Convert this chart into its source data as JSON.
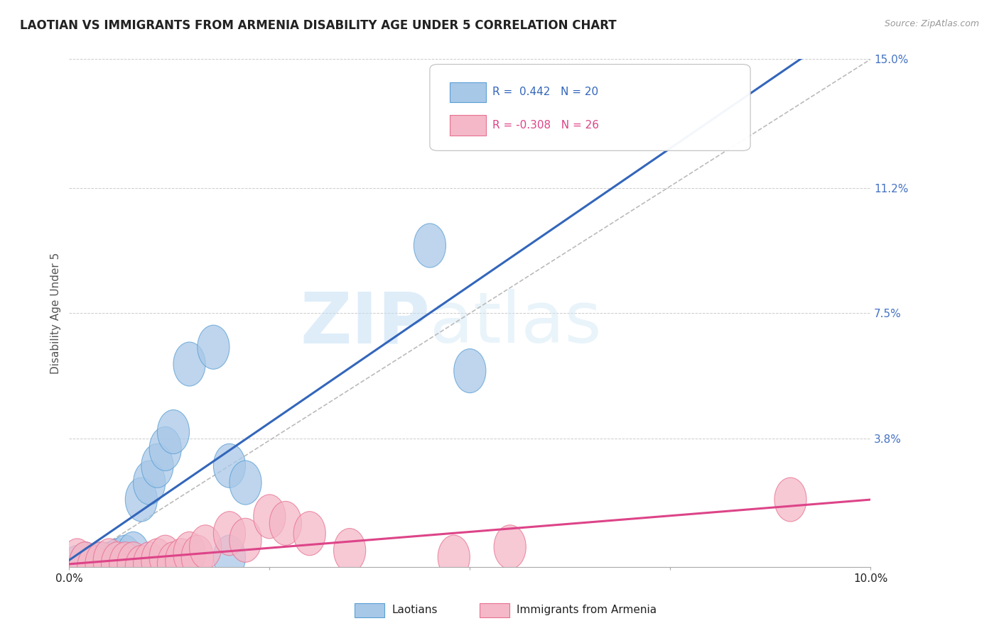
{
  "title": "LAOTIAN VS IMMIGRANTS FROM ARMENIA DISABILITY AGE UNDER 5 CORRELATION CHART",
  "source": "Source: ZipAtlas.com",
  "ylabel": "Disability Age Under 5",
  "xlim": [
    0.0,
    0.1
  ],
  "ylim": [
    0.0,
    0.15
  ],
  "yticks": [
    0.0,
    0.038,
    0.075,
    0.112,
    0.15
  ],
  "ytick_labels": [
    "",
    "3.8%",
    "7.5%",
    "11.2%",
    "15.0%"
  ],
  "legend_blue_r": "R =  0.442",
  "legend_blue_n": "N = 20",
  "legend_pink_r": "R = -0.308",
  "legend_pink_n": "N = 26",
  "blue_color": "#a8c8e8",
  "blue_edge_color": "#5a9fd4",
  "pink_color": "#f4b8c8",
  "pink_edge_color": "#e87090",
  "blue_line_color": "#3366bb",
  "pink_line_color": "#dd4488",
  "gray_dash_color": "#bbbbbb",
  "background_color": "#ffffff",
  "watermark_color": "#ddeeff",
  "laotian_x": [
    0.001,
    0.002,
    0.003,
    0.004,
    0.005,
    0.006,
    0.007,
    0.008,
    0.009,
    0.01,
    0.011,
    0.012,
    0.013,
    0.015,
    0.018,
    0.02,
    0.022,
    0.02,
    0.05,
    0.045
  ],
  "laotian_y": [
    0.0,
    0.001,
    0.0,
    0.001,
    0.001,
    0.002,
    0.003,
    0.004,
    0.02,
    0.025,
    0.03,
    0.035,
    0.04,
    0.06,
    0.065,
    0.03,
    0.025,
    0.003,
    0.058,
    0.095
  ],
  "armenia_x": [
    0.001,
    0.002,
    0.003,
    0.004,
    0.005,
    0.006,
    0.007,
    0.008,
    0.009,
    0.01,
    0.011,
    0.012,
    0.013,
    0.014,
    0.015,
    0.016,
    0.017,
    0.02,
    0.022,
    0.025,
    0.027,
    0.03,
    0.035,
    0.048,
    0.055,
    0.09
  ],
  "armenia_y": [
    0.002,
    0.001,
    0.0,
    0.001,
    0.002,
    0.001,
    0.001,
    0.001,
    0.0,
    0.001,
    0.002,
    0.003,
    0.001,
    0.002,
    0.004,
    0.003,
    0.006,
    0.01,
    0.008,
    0.015,
    0.013,
    0.01,
    0.005,
    0.003,
    0.006,
    0.02
  ]
}
